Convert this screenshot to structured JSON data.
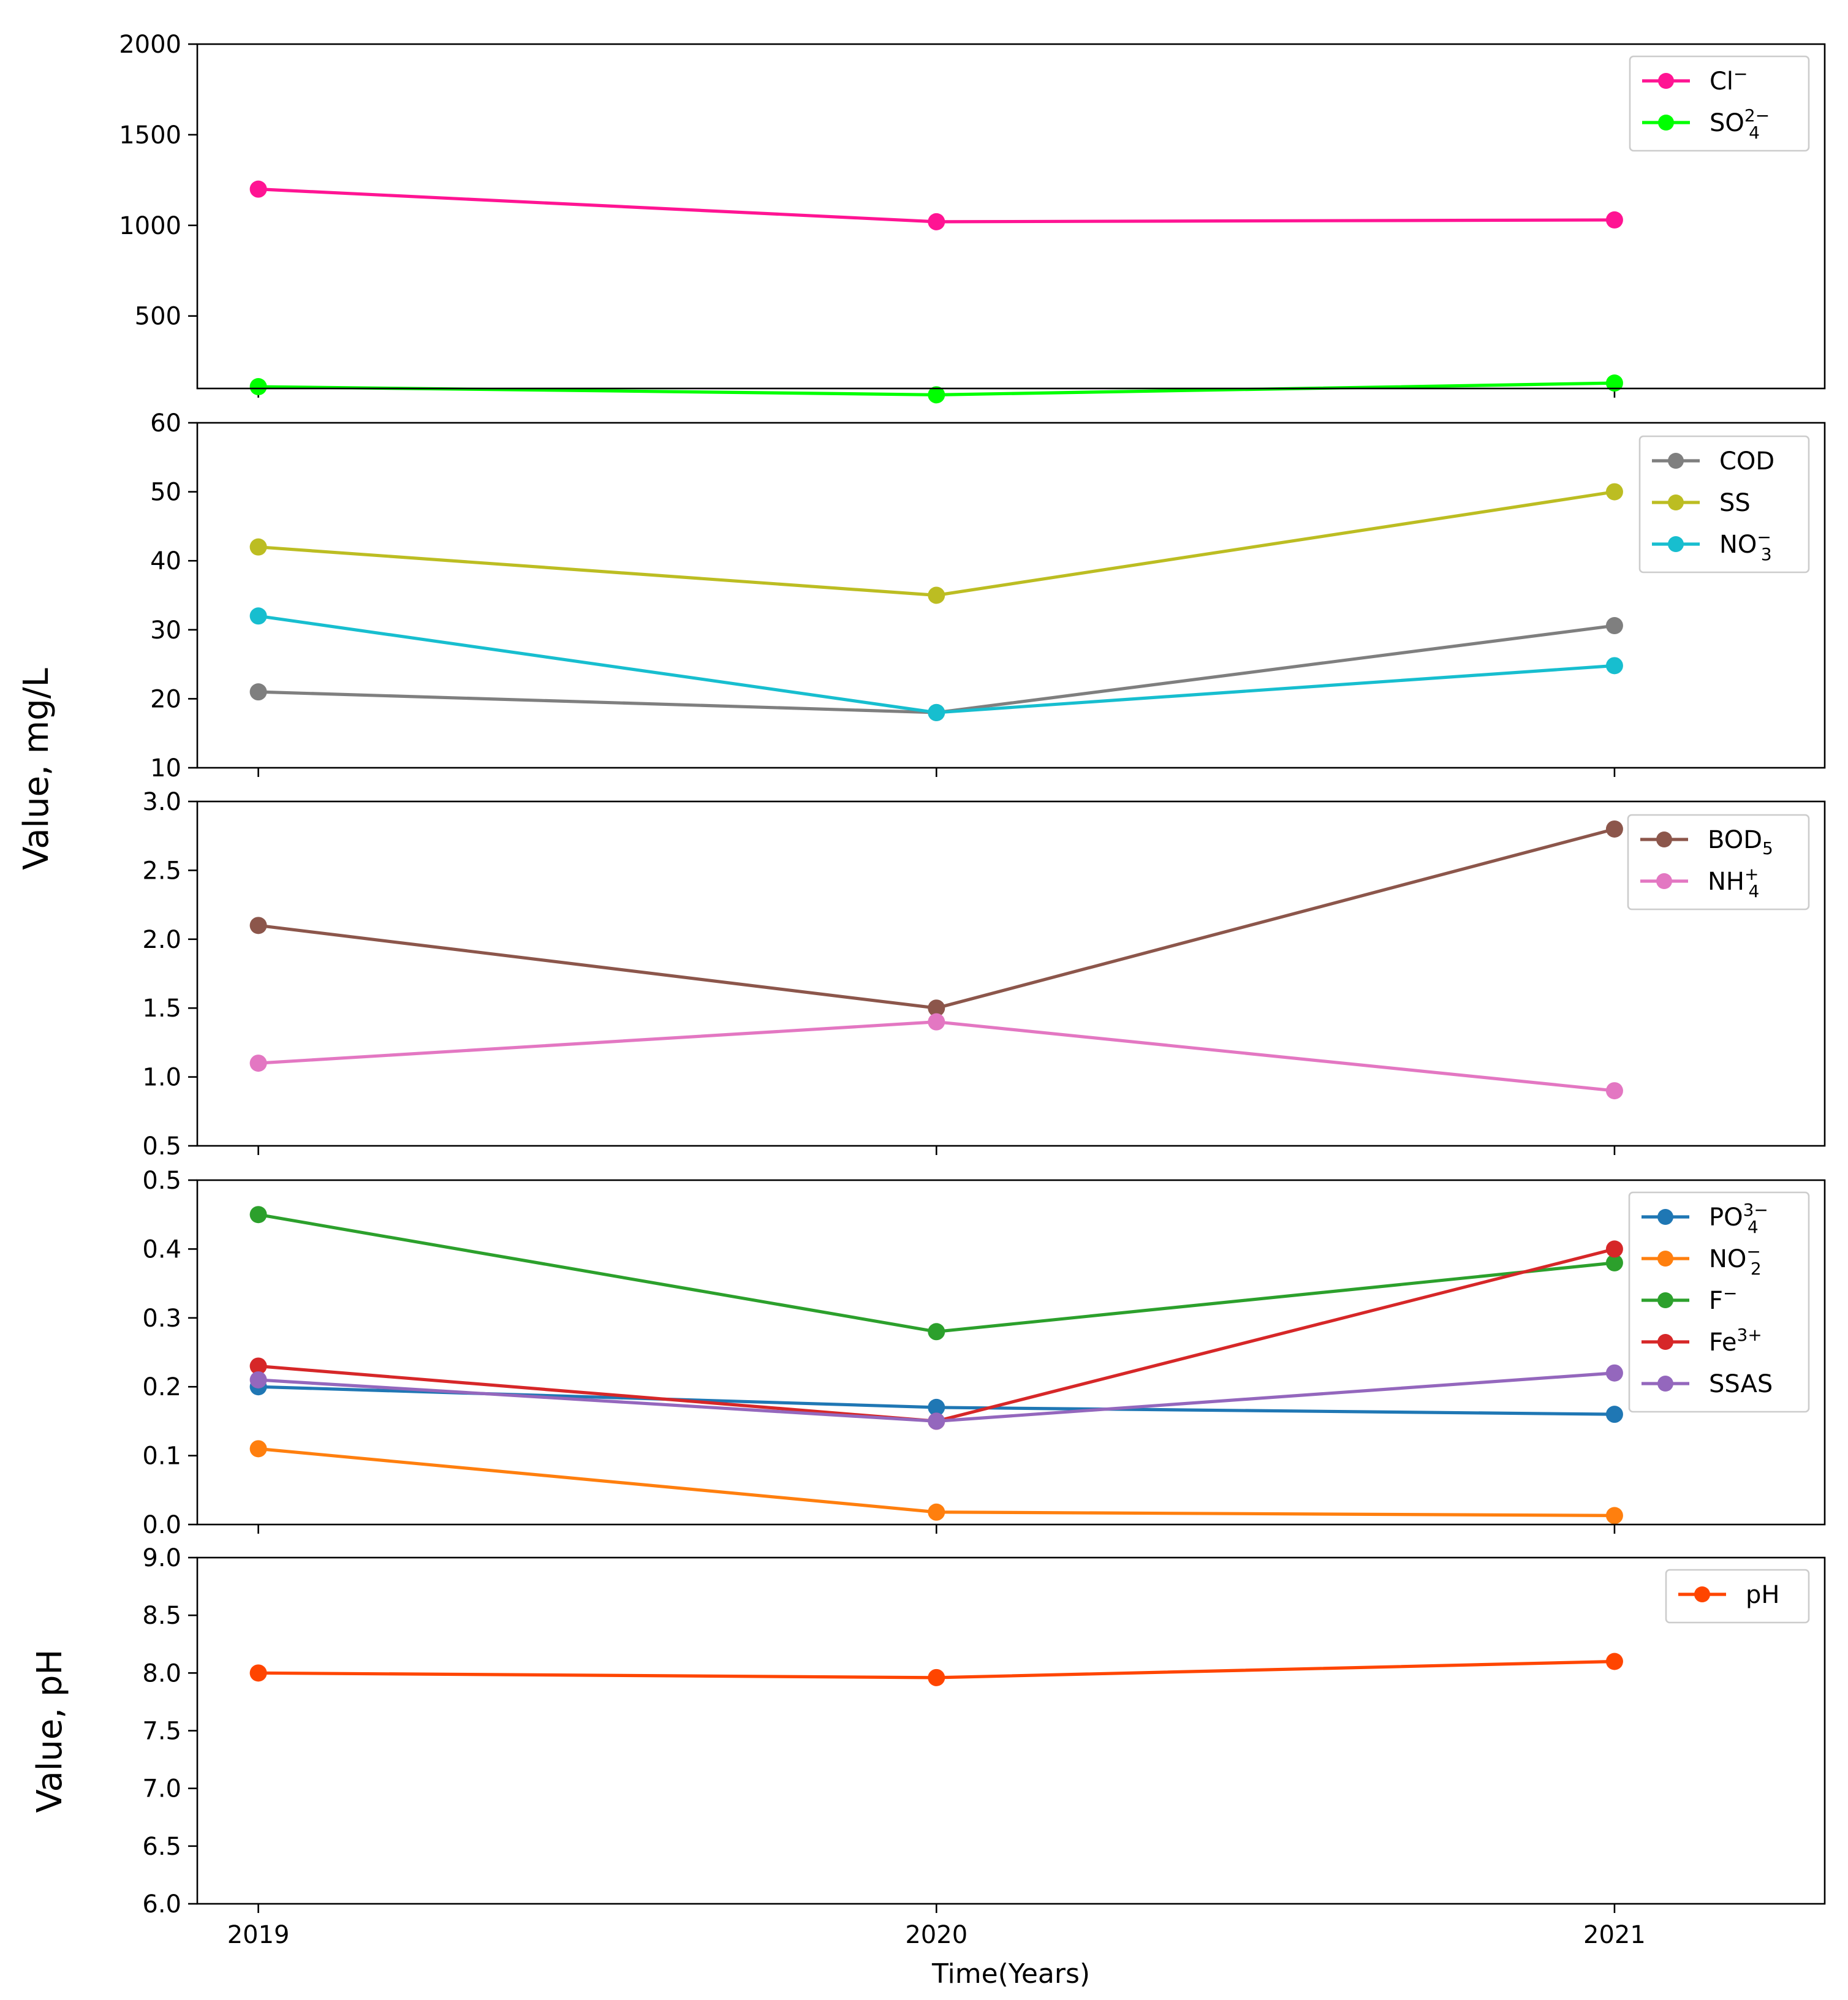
{
  "chart_data": {
    "type": "line",
    "x": [
      2019,
      2020,
      2021
    ],
    "x_tick_labels": [
      "2019",
      "2020",
      "2021"
    ],
    "xlabel": "Time(Years)",
    "ylabel_mgL": "Value, mg/L",
    "ylabel_pH": "Value, pH",
    "grid": false,
    "legend_position": "upper right",
    "subplots": [
      {
        "ylim": [
          100,
          2000
        ],
        "y_ticks": [
          500,
          1000,
          1500,
          2000
        ],
        "y_tick_labels": [
          "500",
          "1000",
          "1500",
          "2000"
        ],
        "series": [
          {
            "name": "Cl⁻",
            "label_base": "Cl",
            "label_sup": "−",
            "label_sub": "",
            "color": "#ff1493",
            "values": [
              1200,
              1020,
              1030
            ]
          },
          {
            "name": "SO₄²⁻",
            "label_base": "SO",
            "label_sup": "2−",
            "label_sub": "4",
            "color": "#00ff00",
            "values": [
              110,
              65,
              130
            ]
          }
        ]
      },
      {
        "ylim": [
          10,
          60
        ],
        "y_ticks": [
          10,
          20,
          30,
          40,
          50,
          60
        ],
        "y_tick_labels": [
          "10",
          "20",
          "30",
          "40",
          "50",
          "60"
        ],
        "series": [
          {
            "name": "COD",
            "label_base": "COD",
            "label_sup": "",
            "label_sub": "",
            "color": "#7f7f7f",
            "values": [
              21,
              18,
              30.6
            ]
          },
          {
            "name": "SS",
            "label_base": "SS",
            "label_sup": "",
            "label_sub": "",
            "color": "#bcbd22",
            "values": [
              42,
              35,
              50
            ]
          },
          {
            "name": "NO₃⁻",
            "label_base": "NO",
            "label_sup": "−",
            "label_sub": "3",
            "color": "#17becf",
            "values": [
              32,
              18,
              24.8
            ]
          }
        ]
      },
      {
        "ylim": [
          0.5,
          3.0
        ],
        "y_ticks": [
          0.5,
          1.0,
          1.5,
          2.0,
          2.5,
          3.0
        ],
        "y_tick_labels": [
          "0.5",
          "1.0",
          "1.5",
          "2.0",
          "2.5",
          "3.0"
        ],
        "series": [
          {
            "name": "BOD₅",
            "label_base": "BOD",
            "label_sup": "",
            "label_sub": "5",
            "color": "#8c564b",
            "values": [
              2.1,
              1.5,
              2.8
            ]
          },
          {
            "name": "NH₄⁺",
            "label_base": "NH",
            "label_sup": "+",
            "label_sub": "4",
            "color": "#e377c2",
            "values": [
              1.1,
              1.4,
              0.9
            ]
          }
        ]
      },
      {
        "ylim": [
          0.0,
          0.5
        ],
        "y_ticks": [
          0.0,
          0.1,
          0.2,
          0.3,
          0.4,
          0.5
        ],
        "y_tick_labels": [
          "0.0",
          "0.1",
          "0.2",
          "0.3",
          "0.4",
          "0.5"
        ],
        "series": [
          {
            "name": "PO₄³⁻",
            "label_base": "PO",
            "label_sup": "3−",
            "label_sub": "4",
            "color": "#1f77b4",
            "values": [
              0.2,
              0.17,
              0.16
            ]
          },
          {
            "name": "NO₂⁻",
            "label_base": "NO",
            "label_sup": "−",
            "label_sub": "2",
            "color": "#ff7f0e",
            "values": [
              0.11,
              0.018,
              0.013
            ]
          },
          {
            "name": "F⁻",
            "label_base": "F",
            "label_sup": "−",
            "label_sub": "",
            "color": "#2ca02c",
            "values": [
              0.45,
              0.28,
              0.38
            ]
          },
          {
            "name": "Fe³⁺",
            "label_base": "Fe",
            "label_sup": "3+",
            "label_sub": "",
            "color": "#d62728",
            "values": [
              0.23,
              0.15,
              0.4
            ]
          },
          {
            "name": "SSAS",
            "label_base": "SSAS",
            "label_sup": "",
            "label_sub": "",
            "color": "#9467bd",
            "values": [
              0.21,
              0.15,
              0.22
            ]
          }
        ]
      },
      {
        "ylim": [
          6.0,
          9.0
        ],
        "y_ticks": [
          6.0,
          6.5,
          7.0,
          7.5,
          8.0,
          8.5,
          9.0
        ],
        "y_tick_labels": [
          "6.0",
          "6.5",
          "7.0",
          "7.5",
          "8.0",
          "8.5",
          "9.0"
        ],
        "series": [
          {
            "name": "pH",
            "label_base": "pH",
            "label_sup": "",
            "label_sub": "",
            "color": "#ff4500",
            "values": [
              8.0,
              7.96,
              8.1
            ]
          }
        ]
      }
    ]
  }
}
